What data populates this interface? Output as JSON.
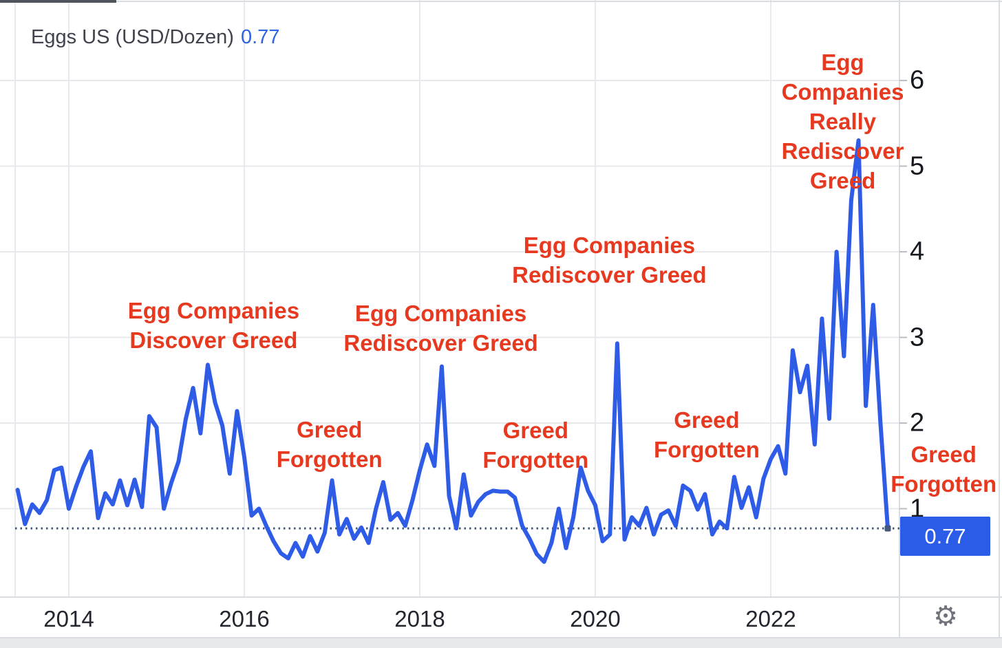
{
  "header": {
    "title": "Eggs US (USD/Dozen)",
    "value": "0.77"
  },
  "price_label": {
    "value": "0.77"
  },
  "footer": {
    "settings_icon": "gear",
    "settings_glyph": "⚙"
  },
  "colors": {
    "line_blue": "#2e5ce6",
    "label_blue": "#2b5ce8",
    "title_value_blue": "#2d63e0",
    "annotation_red": "#e6391f",
    "dotted_reference": "#44587c",
    "gridline": "#e7e9ed",
    "separator": "#d9dce1",
    "tick": "#b9bdc6",
    "axis_text": "#16191f"
  },
  "chart_data": {
    "type": "line",
    "title": "Eggs US (USD/Dozen)",
    "series_name": "Eggs US",
    "unit": "USD/Dozen",
    "frequency": "monthly",
    "start": "2013-06",
    "end": "2023-05",
    "last_value": 0.77,
    "values": [
      1.22,
      0.82,
      1.05,
      0.95,
      1.1,
      1.45,
      1.48,
      1.0,
      1.26,
      1.49,
      1.67,
      0.89,
      1.18,
      1.05,
      1.33,
      1.04,
      1.34,
      1.02,
      2.08,
      1.95,
      1.0,
      1.3,
      1.55,
      2.05,
      2.41,
      1.88,
      2.68,
      2.24,
      1.97,
      1.41,
      2.14,
      1.6,
      0.92,
      1.0,
      0.8,
      0.62,
      0.48,
      0.42,
      0.6,
      0.44,
      0.68,
      0.5,
      0.72,
      1.33,
      0.7,
      0.88,
      0.65,
      0.78,
      0.6,
      1.0,
      1.31,
      0.87,
      0.95,
      0.8,
      1.1,
      1.45,
      1.75,
      1.5,
      2.66,
      1.15,
      0.77,
      1.4,
      0.92,
      1.08,
      1.17,
      1.21,
      1.2,
      1.2,
      1.13,
      0.8,
      0.65,
      0.47,
      0.38,
      0.6,
      1.0,
      0.54,
      0.9,
      1.48,
      1.21,
      1.04,
      0.62,
      0.7,
      2.93,
      0.64,
      0.9,
      0.8,
      1.01,
      0.7,
      0.93,
      0.98,
      0.8,
      1.27,
      1.21,
      0.99,
      1.17,
      0.7,
      0.85,
      0.77,
      1.37,
      1.01,
      1.25,
      0.9,
      1.35,
      1.58,
      1.73,
      1.41,
      2.85,
      2.36,
      2.67,
      1.75,
      3.22,
      2.05,
      4.0,
      2.78,
      4.6,
      5.3,
      2.2,
      3.38,
      2.0,
      0.77
    ],
    "x_axis": {
      "ticks": [
        2014,
        2016,
        2018,
        2020,
        2022
      ],
      "range": [
        2013.38,
        2023.47
      ]
    },
    "y_axis": {
      "ticks": [
        1,
        2,
        3,
        4,
        5,
        6
      ],
      "range": [
        0,
        6.95
      ],
      "side": "right"
    },
    "reference_line": {
      "value": 0.77,
      "style": "dotted"
    },
    "grid": true,
    "legend_position": "top-left",
    "annotations": [
      {
        "lines": [
          "Egg Companies",
          "Discover Greed"
        ],
        "year": 2015.65,
        "value": 3.14
      },
      {
        "lines": [
          "Greed",
          "Forgotten"
        ],
        "year": 2016.97,
        "value": 1.75
      },
      {
        "lines": [
          "Egg Companies",
          "Rediscover Greed"
        ],
        "year": 2018.24,
        "value": 3.11
      },
      {
        "lines": [
          "Greed",
          "Forgotten"
        ],
        "year": 2019.32,
        "value": 1.74
      },
      {
        "lines": [
          "Egg Companies",
          "Rediscover Greed"
        ],
        "year": 2020.16,
        "value": 3.9
      },
      {
        "lines": [
          "Greed",
          "Forgotten"
        ],
        "year": 2021.27,
        "value": 1.86
      },
      {
        "lines": [
          "Egg Companies",
          "Really Rediscover",
          "Greed"
        ],
        "year": 2022.82,
        "value": 5.87
      },
      {
        "lines": [
          "Greed",
          "Forgotten"
        ],
        "year": 2023.97,
        "value": 1.46
      }
    ]
  }
}
